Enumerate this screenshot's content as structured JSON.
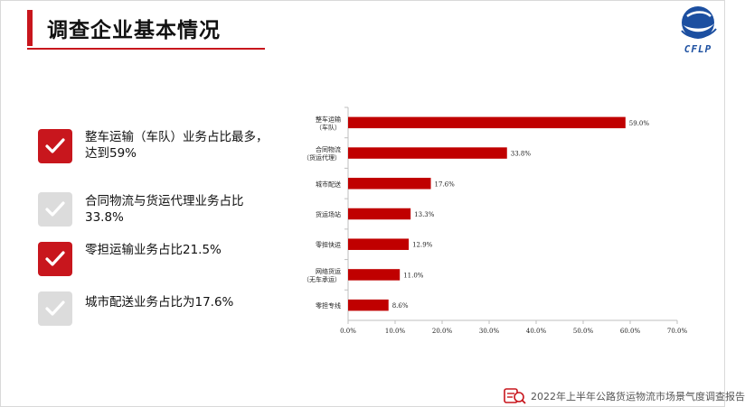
{
  "header": {
    "title": "调查企业基本情况"
  },
  "logo": {
    "text": "CFLP"
  },
  "bullets": [
    {
      "style": "red",
      "lines": [
        "整车运输（车队）业务占比最多，",
        "达到59%"
      ]
    },
    {
      "style": "gray",
      "lines": [
        "合同物流与货运代理业务占比",
        "33.8%"
      ]
    },
    {
      "style": "red",
      "lines": [
        "零担运输业务占比21.5%"
      ]
    },
    {
      "style": "gray",
      "lines": [
        "城市配送业务占比为17.6%"
      ]
    }
  ],
  "chart_data": {
    "type": "bar",
    "orientation": "horizontal",
    "categories": [
      [
        "整车运输",
        "（车队）"
      ],
      [
        "合同物流",
        "（货运代理）"
      ],
      [
        "城市配送"
      ],
      [
        "货运场站"
      ],
      [
        "零担快运"
      ],
      [
        "网络货运",
        "（无车承运）"
      ],
      [
        "零担专线"
      ]
    ],
    "values": [
      59.0,
      33.8,
      17.6,
      13.3,
      12.9,
      11.0,
      8.6
    ],
    "value_labels": [
      "59.0%",
      "33.8%",
      "17.6%",
      "13.3%",
      "12.9%",
      "11.0%",
      "8.6%"
    ],
    "xlim": [
      0,
      70
    ],
    "xticks": [
      0,
      10,
      20,
      30,
      40,
      50,
      60,
      70
    ],
    "xtick_labels": [
      "0.0%",
      "10.0%",
      "20.0%",
      "30.0%",
      "40.0%",
      "50.0%",
      "60.0%",
      "70.0%"
    ],
    "bar_color": "#c00000"
  },
  "footer": {
    "text": "2022年上半年公路货运物流市场景气度调查报告"
  },
  "colors": {
    "accent": "#c8161d",
    "gray": "#dcdcdc",
    "logo_blue": "#1c4fa0"
  }
}
